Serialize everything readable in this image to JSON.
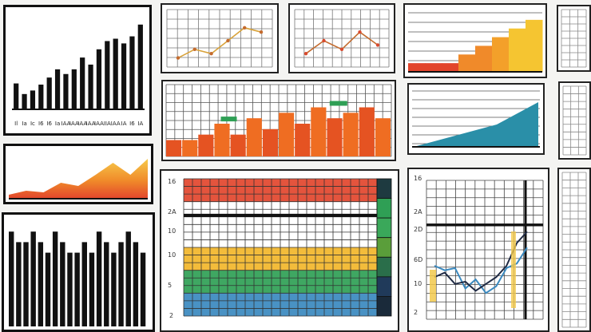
{
  "panels": {
    "p1": {
      "values": [
        22,
        13,
        16,
        21,
        27,
        34,
        30,
        34,
        44,
        38,
        51,
        58,
        60,
        56,
        62,
        72
      ],
      "tick_labels": [
        "Il",
        "Ia",
        "Ic",
        "I6",
        "I6",
        "Ia",
        "IAA",
        "IAA",
        "IAA",
        "IAA",
        "IAA",
        "IIA",
        "IAA",
        "IA",
        "I6",
        "IA"
      ],
      "ylim": [
        0,
        80
      ]
    },
    "p2": {
      "points": [
        [
          0,
          1
        ],
        [
          1,
          3
        ],
        [
          2,
          2
        ],
        [
          3,
          5
        ],
        [
          4,
          8
        ],
        [
          5,
          7
        ]
      ],
      "ylim": [
        0,
        10
      ]
    },
    "p3": {
      "points": [
        [
          0,
          2
        ],
        [
          1,
          5
        ],
        [
          2,
          3
        ],
        [
          3,
          7
        ],
        [
          4,
          4
        ]
      ],
      "ylim": [
        0,
        10
      ]
    },
    "p4": {
      "levels": [
        1,
        1,
        1,
        2,
        3,
        4,
        5,
        6
      ],
      "ylim": [
        0,
        7
      ]
    },
    "p6": {
      "values": [
        3,
        3,
        4,
        6,
        4,
        7,
        5,
        8,
        6,
        9,
        7,
        8,
        9,
        7
      ],
      "ylim": [
        0,
        12
      ]
    },
    "p7": {
      "points": [
        [
          0,
          0
        ],
        [
          1,
          1
        ],
        [
          2,
          2
        ],
        [
          3,
          3
        ],
        [
          4,
          4
        ],
        [
          5,
          6
        ],
        [
          6,
          8
        ]
      ],
      "ylim": [
        0,
        10
      ]
    },
    "p8": {
      "points": [
        [
          0,
          1
        ],
        [
          1,
          2
        ],
        [
          2,
          1.6
        ],
        [
          3,
          4
        ],
        [
          4,
          3.2
        ],
        [
          5,
          6
        ],
        [
          6,
          9
        ],
        [
          7,
          6
        ],
        [
          8,
          10
        ]
      ],
      "ylim": [
        0,
        12
      ]
    },
    "p9": {
      "values": [
        9,
        8,
        8,
        9,
        8,
        7,
        9,
        8,
        7,
        7,
        8,
        7,
        9,
        8,
        7,
        8,
        9,
        8,
        7
      ],
      "ylim": [
        0,
        10
      ]
    },
    "p10": {
      "bands": [
        {
          "name": "red",
          "color": "#e2452c"
        },
        {
          "name": "white",
          "color": "#ffffff"
        },
        {
          "name": "white",
          "color": "#ffffff"
        },
        {
          "name": "orange",
          "color": "#f2b62a"
        },
        {
          "name": "green",
          "color": "#2f9f55"
        },
        {
          "name": "blue",
          "color": "#3a89bf"
        }
      ],
      "y_labels": [
        "16",
        "2A",
        "10",
        "10",
        "5",
        "2"
      ]
    },
    "p11": {
      "y_labels": [
        "16",
        "2A",
        "2D",
        "6D",
        "10",
        "2"
      ],
      "series": [
        [
          4,
          3.6,
          3.8,
          2,
          2.8,
          1.6,
          2.2,
          3.8,
          4.2,
          5.6
        ],
        [
          3,
          3.4,
          2.4,
          2.6,
          1.8,
          2.4,
          3,
          4,
          6,
          7
        ]
      ]
    }
  },
  "colors": {
    "red": "#e2452c",
    "orange": "#f08a2a",
    "yellow": "#f5c531",
    "green": "#2f9f55",
    "teal": "#2a8fa8",
    "blue": "#1f5f9e",
    "black": "#111111"
  }
}
